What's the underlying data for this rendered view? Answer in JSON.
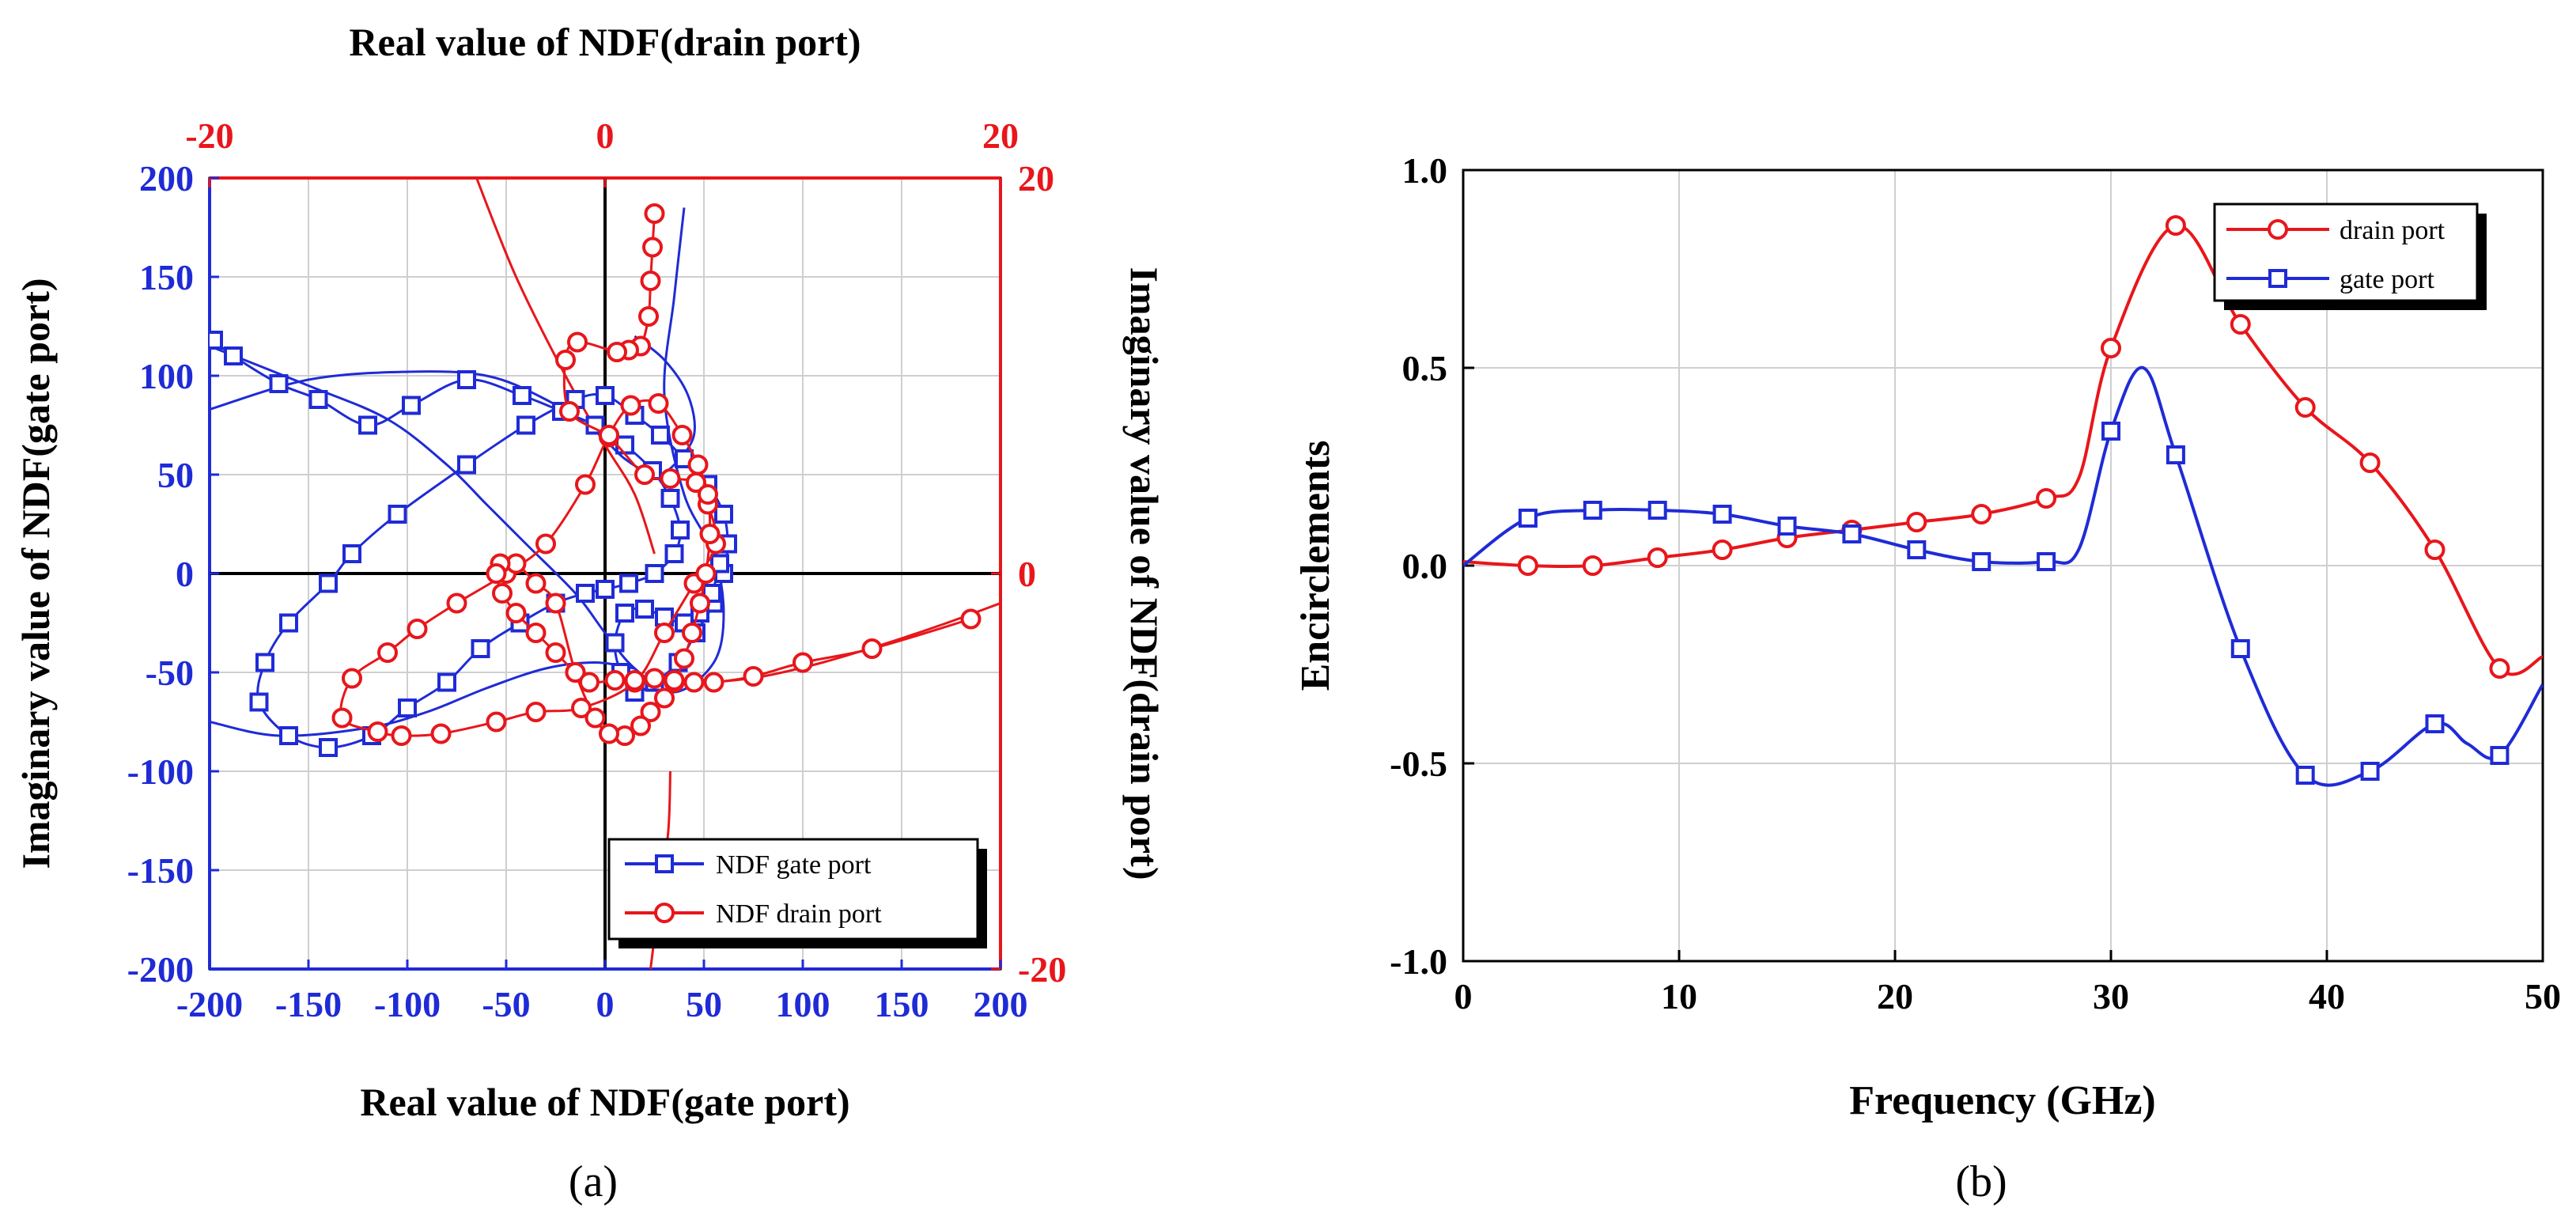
{
  "colors": {
    "blue": "#1f2bd6",
    "red": "#e8161b",
    "black": "#000000",
    "grid": "#cfcfcf"
  },
  "chart_data": [
    {
      "id": "a",
      "type": "scatter",
      "caption": "(a)",
      "top_title": "Real value of NDF(drain port)",
      "xlabel": "Real value of NDF(gate port)",
      "ylabel_left": "Imaginary value of NDF(gate port)",
      "ylabel_right": "Imaginary value of NDF(drain port)",
      "xlim": [
        -200,
        200
      ],
      "ylim": [
        -200,
        200
      ],
      "x_ticks": [
        "-200",
        "-150",
        "-100",
        "-50",
        "0",
        "50",
        "100",
        "150",
        "200"
      ],
      "y_ticks": [
        "200",
        "150",
        "100",
        "50",
        "0",
        "-50",
        "-100",
        "-150",
        "-200"
      ],
      "x2lim": [
        -20,
        20
      ],
      "y2lim": [
        -20,
        20
      ],
      "x2_ticks": [
        "-20",
        "0",
        "20"
      ],
      "y2_ticks": [
        "20",
        "0",
        "-20"
      ],
      "grid": true,
      "legend": "bottom-right",
      "series": [
        {
          "name": "NDF gate port",
          "axis": "primary",
          "marker": "square",
          "x": [
            -198,
            -188,
            -165,
            -145,
            -120,
            -98,
            -70,
            -42,
            -22,
            -5,
            10,
            24,
            33,
            38,
            35,
            25,
            12,
            0,
            -10,
            -25,
            -43,
            -63,
            -80,
            -100,
            -118,
            -140,
            -160,
            -175,
            -172,
            -160,
            -140,
            -128,
            -105,
            -70,
            -40,
            -15,
            0,
            15,
            28,
            40,
            52,
            60,
            62,
            60,
            55,
            46,
            37,
            25,
            15,
            8,
            5,
            10,
            20,
            30,
            40,
            48,
            54,
            58
          ],
          "y": [
            118,
            110,
            96,
            88,
            75,
            85,
            98,
            90,
            82,
            75,
            65,
            52,
            38,
            22,
            10,
            0,
            -5,
            -8,
            -10,
            -15,
            -25,
            -38,
            -55,
            -68,
            -82,
            -88,
            -82,
            -65,
            -45,
            -25,
            -5,
            10,
            30,
            55,
            75,
            88,
            90,
            80,
            70,
            58,
            45,
            30,
            15,
            0,
            -15,
            -30,
            -45,
            -55,
            -60,
            -50,
            -35,
            -20,
            -18,
            -22,
            -25,
            -20,
            -10,
            5
          ]
        },
        {
          "name": "NDF drain port",
          "axis": "secondary",
          "marker": "circle",
          "x": [
            2.5,
            2.4,
            2.3,
            2.2,
            1.8,
            1.2,
            0.6,
            -1.4,
            -2.0,
            -1.8,
            0.2,
            2.0,
            3.3,
            4.6,
            5.2,
            5.6,
            4.5,
            3.0,
            1.5,
            -1.2,
            -3.5,
            -5.5,
            -8.3,
            -10.3,
            -11.5,
            -13.3,
            -12.8,
            -11.0,
            -9.5,
            -7.5,
            -5.0,
            -3.0,
            -1.0,
            0.2,
            1.3,
            2.7,
            3.9,
            4.7,
            5.2,
            5.3,
            5.1,
            4.8,
            4.4,
            4.0,
            3.5,
            3.0,
            2.3,
            1.8,
            1.0,
            0.2,
            -0.5,
            -1.5,
            -2.5,
            -3.5,
            -4.5,
            -5.3,
            -5.5,
            -5.2,
            -4.5,
            -3.5,
            -2.5,
            -1.5,
            -0.8,
            0.5,
            1.5,
            2.5,
            3.5,
            4.5,
            5.5,
            7.5,
            10.0,
            13.5,
            18.5
          ],
          "y": [
            18.2,
            16.5,
            14.8,
            13.0,
            11.5,
            11.3,
            11.2,
            11.7,
            10.8,
            8.2,
            6.9,
            5.0,
            4.8,
            4.6,
            3.5,
            1.5,
            -0.5,
            -3.0,
            -5.5,
            -6.8,
            -7.0,
            -7.5,
            -8.1,
            -8.2,
            -8.0,
            -7.3,
            -5.3,
            -4.0,
            -2.8,
            -1.5,
            0.0,
            1.5,
            4.5,
            7.0,
            8.5,
            8.6,
            7.0,
            5.5,
            4.0,
            2.0,
            0.0,
            -1.5,
            -3.0,
            -4.3,
            -5.5,
            -6.3,
            -7.0,
            -7.7,
            -8.2,
            -8.1,
            -7.3,
            -5.0,
            -1.5,
            -0.5,
            0.5,
            0.5,
            0.0,
            -1.0,
            -2.0,
            -3.0,
            -4.0,
            -5.0,
            -5.5,
            -5.4,
            -5.4,
            -5.3,
            -5.4,
            -5.5,
            -5.5,
            -5.2,
            -4.5,
            -3.8,
            -2.3
          ]
        }
      ]
    },
    {
      "id": "b",
      "type": "line",
      "caption": "(b)",
      "xlabel": "Frequency (GHz)",
      "ylabel": "Encirclements",
      "xlim": [
        0,
        50
      ],
      "ylim": [
        -1.0,
        1.0
      ],
      "x_ticks": [
        "0",
        "10",
        "20",
        "30",
        "40",
        "50"
      ],
      "y_ticks": [
        "1.0",
        "0.5",
        "0.0",
        "-0.5",
        "-1.0"
      ],
      "grid": true,
      "legend": "top-right",
      "series": [
        {
          "name": "drain port",
          "marker": "circle",
          "x": [
            0,
            3,
            6,
            9,
            12,
            15,
            18,
            21,
            24,
            27,
            28.5,
            30,
            33,
            36,
            39,
            42,
            45,
            48,
            50
          ],
          "y": [
            0.01,
            0.0,
            0.0,
            0.02,
            0.04,
            0.07,
            0.09,
            0.11,
            0.13,
            0.17,
            0.22,
            0.55,
            0.86,
            0.61,
            0.4,
            0.26,
            0.04,
            -0.26,
            -0.23
          ]
        },
        {
          "name": "gate port",
          "marker": "square",
          "x": [
            0,
            3,
            6,
            9,
            12,
            15,
            18,
            21,
            24,
            27,
            28.5,
            30,
            31.5,
            33,
            36,
            39,
            42,
            45,
            46.5,
            48,
            50
          ],
          "y": [
            0.0,
            0.12,
            0.14,
            0.14,
            0.13,
            0.1,
            0.08,
            0.04,
            0.01,
            0.01,
            0.04,
            0.34,
            0.5,
            0.28,
            -0.21,
            -0.53,
            -0.52,
            -0.4,
            -0.45,
            -0.48,
            -0.3
          ]
        }
      ]
    }
  ]
}
